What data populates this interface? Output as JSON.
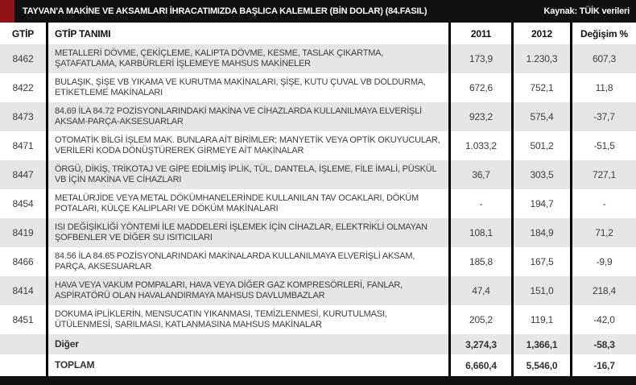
{
  "header": {
    "title": "TAYVAN'A MAKİNE VE AKSAMLARI İHRACATIMIZDA BAŞLICA KALEMLER (BİN DOLAR) (84.FASIL)",
    "source": "Kaynak: TÜİK verileri",
    "accent_color": "#8e1417",
    "bar_color": "#101010"
  },
  "table": {
    "columns": [
      "GTİP",
      "GTİP TANIMI",
      "2011",
      "2012",
      "Değişim %"
    ],
    "row_shade_color": "#e6e6e6",
    "text_color": "#3d3d3d",
    "rows": [
      {
        "code": "8462",
        "description": "METALLERİ DÖVME, ÇEKİÇLEME, KALIPTA DÖVME, KESME, TASLAK ÇIKARTMA, ŞATAFATLAMA, KARBÜRLERİ İŞLEMEYE MAHSUS MAKİNELER",
        "y2011": "173,9",
        "y2012": "1.230,3",
        "change": "607,3",
        "shaded": true,
        "variant": "data"
      },
      {
        "code": "8422",
        "description": "BULAŞIK, ŞİŞE VB YIKAMA VE KURUTMA MAKİNALARI, ŞİŞE, KUTU ÇUVAL VB DOLDURMA, ETİKETLEME MAKİNALARI",
        "y2011": "672,6",
        "y2012": "752,1",
        "change": "11,8",
        "shaded": false,
        "variant": "data"
      },
      {
        "code": "8473",
        "description": "84.69 İLA 84.72 POZİSYONLARINDAKİ MAKİNA VE CİHAZLARDA KULLANILMAYA ELVERİŞLİ AKSAM-PARÇA-AKSESUARLAR",
        "y2011": "923,2",
        "y2012": "575,4",
        "change": "-37,7",
        "shaded": true,
        "variant": "data"
      },
      {
        "code": "8471",
        "description": "OTOMATİK BİLGİ İŞLEM MAK. BUNLARA AİT BİRİMLER; MANYETİK VEYA OPTİK OKUYUCULAR, VERİLERİ KODA DÖNÜŞTÜREREK GİRMEYE AİT MAKİNALAR",
        "y2011": "1.033,2",
        "y2012": "501,2",
        "change": "-51,5",
        "shaded": false,
        "variant": "data"
      },
      {
        "code": "8447",
        "description": "ÖRGÜ, DİKİŞ, TRİKOTAJ VE GİPE EDİLMİŞ İPLİK, TÜL, DANTELA, İŞLEME, FİLE İMALİ, PÜSKÜL VB İÇİN MAKİNA VE CİHAZLARI",
        "y2011": "36,7",
        "y2012": "303,5",
        "change": "727,1",
        "shaded": true,
        "variant": "data"
      },
      {
        "code": "8454",
        "description": "METALÜRJİDE VEYA METAL DÖKÜMHANELERİNDE KULLANILAN TAV OCAKLARI, DÖKÜM POTALARI, KÜLÇE KALIPLARI VE DÖKÜM MAKİNALARI",
        "y2011": "-",
        "y2012": "194,7",
        "change": "-",
        "shaded": false,
        "variant": "data"
      },
      {
        "code": "8419",
        "description": "ISI DEĞİŞİKLİĞİ YÖNTEMİ İLE MADDELERİ İŞLEMEK İÇİN CİHAZLAR, ELEKTRİKLİ OLMAYAN ŞOFBENLER VE DİĞER SU ISITICILARI",
        "y2011": "108,1",
        "y2012": "184,9",
        "change": "71,2",
        "shaded": true,
        "variant": "data"
      },
      {
        "code": "8466",
        "description": "84.56 İLA 84.65 POZİSYONLARINDAKİ MAKİNALARDA KULLANILMAYA ELVERİŞLİ AKSAM, PARÇA, AKSESUARLAR",
        "y2011": "185,8",
        "y2012": "167,5",
        "change": "-9,9",
        "shaded": false,
        "variant": "data"
      },
      {
        "code": "8414",
        "description": "HAVA VEYA VAKUM POMPALARI, HAVA VEYA DİĞER GAZ KOMPRESÖRLERİ, FANLAR, ASPİRATÖRÜ OLAN HAVALANDIRMAYA MAHSUS DAVLUMBAZLAR",
        "y2011": "47,4",
        "y2012": "151,0",
        "change": "218,4",
        "shaded": true,
        "variant": "data"
      },
      {
        "code": "8451",
        "description": "DOKUMA İPLİKLERİN, MENSUCATIN YIKANMASI, TEMİZLENMESİ, KURUTULMASI, ÜTÜLENMESİ, SARILMASI, KATLANMASINA MAHSUS MAKİNALAR",
        "y2011": "205,2",
        "y2012": "119,1",
        "change": "-42,0",
        "shaded": false,
        "variant": "data"
      },
      {
        "code": "",
        "description": "Diğer",
        "y2011": "3,274,3",
        "y2012": "1,366,1",
        "change": "-58,3",
        "shaded": true,
        "variant": "other"
      },
      {
        "code": "",
        "description": "TOPLAM",
        "y2011": "6,660,4",
        "y2012": "5,546,0",
        "change": "-16,7",
        "shaded": false,
        "variant": "total"
      }
    ]
  }
}
